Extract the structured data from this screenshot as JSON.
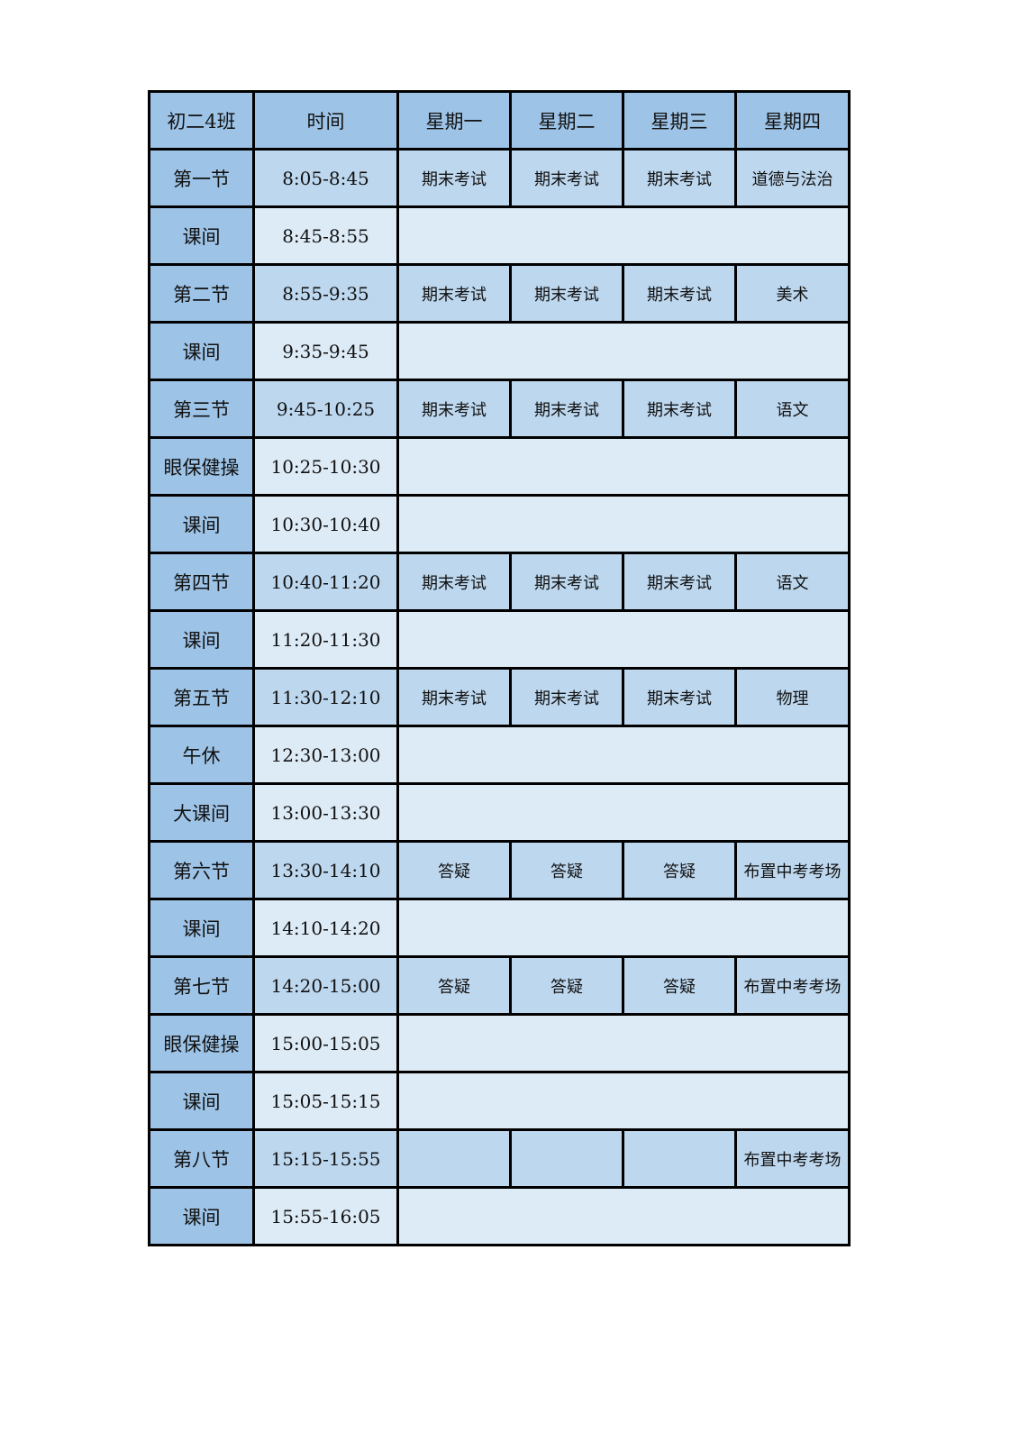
{
  "header": [
    "初二4班",
    "时间",
    "星期一",
    "星期二",
    "星期三",
    "星期四"
  ],
  "rows": [
    {
      "label": "第一节",
      "time": "8:05-8:45",
      "type": "class",
      "subjects": [
        "期末考试",
        "期末考试",
        "期末考试",
        "道德与法治"
      ]
    },
    {
      "label": "课间",
      "time": "8:45-8:55",
      "type": "break"
    },
    {
      "label": "第二节",
      "time": "8:55-9:35",
      "type": "class",
      "subjects": [
        "期末考试",
        "期末考试",
        "期末考试",
        "美术"
      ]
    },
    {
      "label": "课间",
      "time": "9:35-9:45",
      "type": "break"
    },
    {
      "label": "第三节",
      "time": "9:45-10:25",
      "type": "class",
      "subjects": [
        "期末考试",
        "期末考试",
        "期末考试",
        "语文"
      ]
    },
    {
      "label": "眼保健操",
      "time": "10:25-10:30",
      "type": "break"
    },
    {
      "label": "课间",
      "time": "10:30-10:40",
      "type": "break"
    },
    {
      "label": "第四节",
      "time": "10:40-11:20",
      "type": "class",
      "subjects": [
        "期末考试",
        "期末考试",
        "期末考试",
        "语文"
      ]
    },
    {
      "label": "课间",
      "time": "11:20-11:30",
      "type": "break"
    },
    {
      "label": "第五节",
      "time": "11:30-12:10",
      "type": "class",
      "subjects": [
        "期末考试",
        "期末考试",
        "期末考试",
        "物理"
      ]
    },
    {
      "label": "午休",
      "time": "12:30-13:00",
      "type": "break"
    },
    {
      "label": "大课间",
      "time": "13:00-13:30",
      "type": "break"
    },
    {
      "label": "第六节",
      "time": "13:30-14:10",
      "type": "class",
      "subjects": [
        "答疑",
        "答疑",
        "答疑",
        "布置中考考场"
      ]
    },
    {
      "label": "课间",
      "time": "14:10-14:20",
      "type": "break"
    },
    {
      "label": "第七节",
      "time": "14:20-15:00",
      "type": "class",
      "subjects": [
        "答疑",
        "答疑",
        "答疑",
        "布置中考考场"
      ]
    },
    {
      "label": "眼保健操",
      "time": "15:00-15:05",
      "type": "break"
    },
    {
      "label": "课间",
      "time": "15:05-15:15",
      "type": "break"
    },
    {
      "label": "第八节",
      "time": "15:15-15:55",
      "type": "class",
      "subjects": [
        "",
        "",
        "",
        "布置中考考场"
      ]
    },
    {
      "label": "课间",
      "time": "15:55-16:05",
      "type": "break"
    }
  ],
  "colors": {
    "header": "#9dc3e6",
    "class_row": "#bdd7ee",
    "break_row": "#ddebf7",
    "border": "#000000"
  }
}
